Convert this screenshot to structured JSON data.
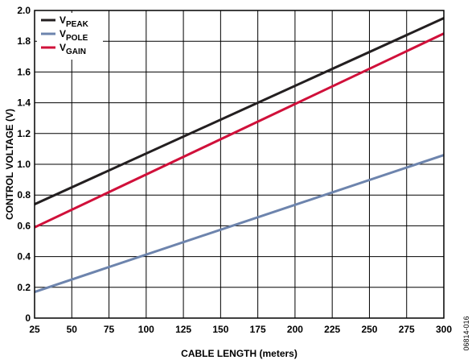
{
  "chart_data": {
    "type": "line",
    "title": "",
    "xlabel": "CABLE LENGTH (meters)",
    "ylabel": "CONTROL VOLTAGE (V)",
    "xlim": [
      25,
      300
    ],
    "ylim": [
      0,
      2.0
    ],
    "x_ticks": [
      25,
      50,
      75,
      100,
      125,
      150,
      175,
      200,
      225,
      250,
      275,
      300
    ],
    "y_ticks": [
      0,
      0.2,
      0.4,
      0.6,
      0.8,
      1.0,
      1.2,
      1.4,
      1.6,
      1.8,
      2.0
    ],
    "x_tick_labels": [
      "25",
      "50",
      "75",
      "100",
      "125",
      "150",
      "175",
      "200",
      "225",
      "250",
      "275",
      "300"
    ],
    "y_tick_labels": [
      "0",
      "0.2",
      "0.4",
      "0.6",
      "0.8",
      "1.0",
      "1.2",
      "1.4",
      "1.6",
      "1.8",
      "2.0"
    ],
    "grid": true,
    "legend_position": "top-left",
    "series": [
      {
        "name": "V",
        "subscript": "PEAK",
        "color": "#231f20",
        "x": [
          25,
          300
        ],
        "y": [
          0.74,
          1.95
        ]
      },
      {
        "name": "V",
        "subscript": "POLE",
        "color": "#6d84ad",
        "x": [
          25,
          300
        ],
        "y": [
          0.17,
          1.06
        ]
      },
      {
        "name": "V",
        "subscript": "GAIN",
        "color": "#d0103a",
        "x": [
          25,
          300
        ],
        "y": [
          0.59,
          1.85
        ]
      }
    ]
  },
  "figure_id": "06814-016"
}
